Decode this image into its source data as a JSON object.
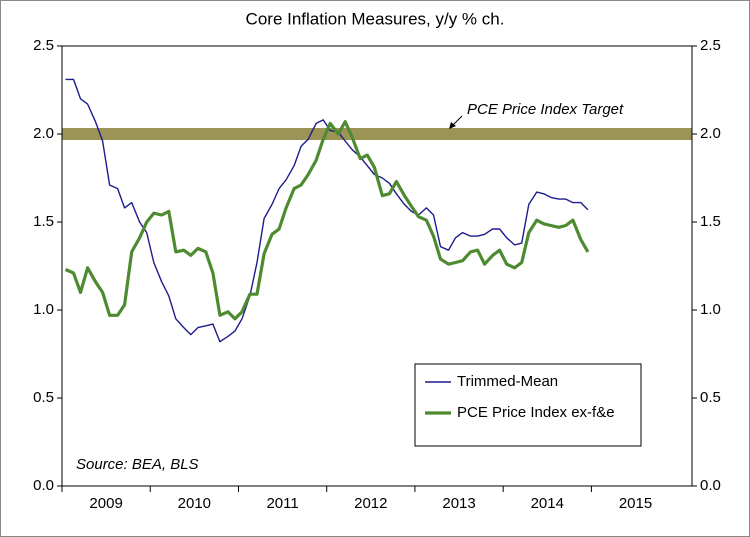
{
  "chart_data": {
    "type": "line",
    "title": "Core Inflation Measures, y/y % ch.",
    "source": "Source: BEA, BLS",
    "target": {
      "value": 2,
      "label": "PCE Price Index Target",
      "color": "#9b9456"
    },
    "xlim": [
      2009,
      2016.14
    ],
    "xticks": [
      {
        "value": 2009.5,
        "label": "2009"
      },
      {
        "value": 2010.5,
        "label": "2010"
      },
      {
        "value": 2011.5,
        "label": "2011"
      },
      {
        "value": 2012.5,
        "label": "2012"
      },
      {
        "value": 2013.5,
        "label": "2013"
      },
      {
        "value": 2014.5,
        "label": "2014"
      },
      {
        "value": 2015.5,
        "label": "2015"
      }
    ],
    "ylim": [
      0,
      2.5
    ],
    "yticks": [
      {
        "value": 0,
        "label": "0.0"
      },
      0.5,
      {
        "value": 1,
        "label": "1.0"
      },
      1.5,
      {
        "value": 2,
        "label": "2.0"
      },
      2.5
    ],
    "y2lim": [
      0,
      2.5
    ],
    "y2ticks": [
      {
        "value": 0,
        "label": "0.0"
      },
      0.5,
      {
        "value": 1,
        "label": "1.0"
      },
      1.5,
      {
        "value": 2,
        "label": "2.0"
      },
      2.5
    ],
    "grid": false,
    "legend": "lower-right",
    "x": [
      2009.04,
      2009.13,
      2009.21,
      2009.29,
      2009.38,
      2009.46,
      2009.54,
      2009.63,
      2009.71,
      2009.79,
      2009.88,
      2009.96,
      2010.04,
      2010.13,
      2010.21,
      2010.29,
      2010.38,
      2010.46,
      2010.54,
      2010.63,
      2010.71,
      2010.79,
      2010.88,
      2010.96,
      2011.04,
      2011.13,
      2011.21,
      2011.29,
      2011.38,
      2011.46,
      2011.54,
      2011.63,
      2011.71,
      2011.79,
      2011.88,
      2011.96,
      2012.04,
      2012.13,
      2012.21,
      2012.29,
      2012.38,
      2012.46,
      2012.54,
      2012.63,
      2012.71,
      2012.79,
      2012.88,
      2012.96,
      2013.04,
      2013.13,
      2013.21,
      2013.29,
      2013.38,
      2013.46,
      2013.54,
      2013.63,
      2013.71,
      2013.79,
      2013.88,
      2013.96,
      2014.04,
      2014.13,
      2014.21,
      2014.29,
      2014.38,
      2014.46,
      2014.54,
      2014.63,
      2014.71,
      2014.79,
      2014.88,
      2014.96
    ],
    "series": [
      {
        "name": "Trimmed-Mean",
        "color": "#1c1c8c",
        "width": 1.4,
        "values": [
          2.31,
          2.31,
          2.2,
          2.17,
          2.07,
          1.96,
          1.71,
          1.69,
          1.58,
          1.61,
          1.5,
          1.44,
          1.27,
          1.16,
          1.08,
          0.95,
          0.9,
          0.86,
          0.9,
          0.91,
          0.92,
          0.82,
          0.85,
          0.88,
          0.95,
          1.08,
          1.27,
          1.52,
          1.6,
          1.69,
          1.74,
          1.82,
          1.93,
          1.97,
          2.06,
          2.08,
          2.02,
          2.01,
          1.96,
          1.91,
          1.87,
          1.82,
          1.77,
          1.75,
          1.72,
          1.66,
          1.6,
          1.56,
          1.54,
          1.58,
          1.54,
          1.36,
          1.34,
          1.41,
          1.44,
          1.42,
          1.42,
          1.43,
          1.46,
          1.46,
          1.41,
          1.37,
          1.38,
          1.6,
          1.67,
          1.66,
          1.64,
          1.63,
          1.63,
          1.61,
          1.61,
          1.57
        ]
      },
      {
        "name": "PCE Price Index ex-f&e",
        "color": "#4e8b30",
        "width": 3.2,
        "values": [
          1.23,
          1.21,
          1.1,
          1.24,
          1.16,
          1.1,
          0.97,
          0.97,
          1.03,
          1.33,
          1.41,
          1.5,
          1.55,
          1.54,
          1.56,
          1.33,
          1.34,
          1.31,
          1.35,
          1.33,
          1.21,
          0.97,
          0.99,
          0.95,
          0.99,
          1.09,
          1.09,
          1.32,
          1.43,
          1.46,
          1.58,
          1.69,
          1.71,
          1.77,
          1.85,
          1.97,
          2.06,
          2.0,
          2.07,
          1.98,
          1.86,
          1.88,
          1.81,
          1.65,
          1.66,
          1.73,
          1.65,
          1.59,
          1.53,
          1.51,
          1.42,
          1.29,
          1.26,
          1.27,
          1.28,
          1.33,
          1.34,
          1.26,
          1.31,
          1.34,
          1.26,
          1.24,
          1.27,
          1.44,
          1.51,
          1.49,
          1.48,
          1.47,
          1.48,
          1.51,
          1.4,
          1.33
        ]
      }
    ]
  }
}
